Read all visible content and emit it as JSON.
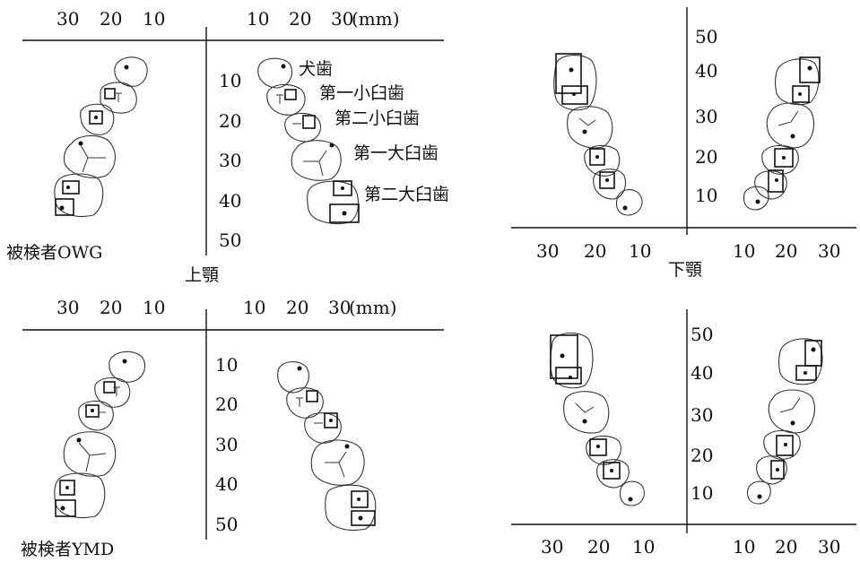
{
  "units": "(mm)",
  "x_ticks": {
    "left": [
      "30",
      "20",
      "10"
    ],
    "right": [
      "10",
      "20",
      "30"
    ]
  },
  "y_ticks_upper": [
    "10",
    "20",
    "30",
    "40",
    "50"
  ],
  "y_ticks_lower": [
    "50",
    "40",
    "30",
    "20",
    "10"
  ],
  "captions": {
    "subject1": "被検者OWG",
    "subject2": "被検者YMD",
    "maxilla": "上顎",
    "mandible": "下顎"
  },
  "tooth_labels": [
    "犬歯",
    "第一小臼歯",
    "第二小臼歯",
    "第一大臼歯",
    "第二大臼歯"
  ]
}
